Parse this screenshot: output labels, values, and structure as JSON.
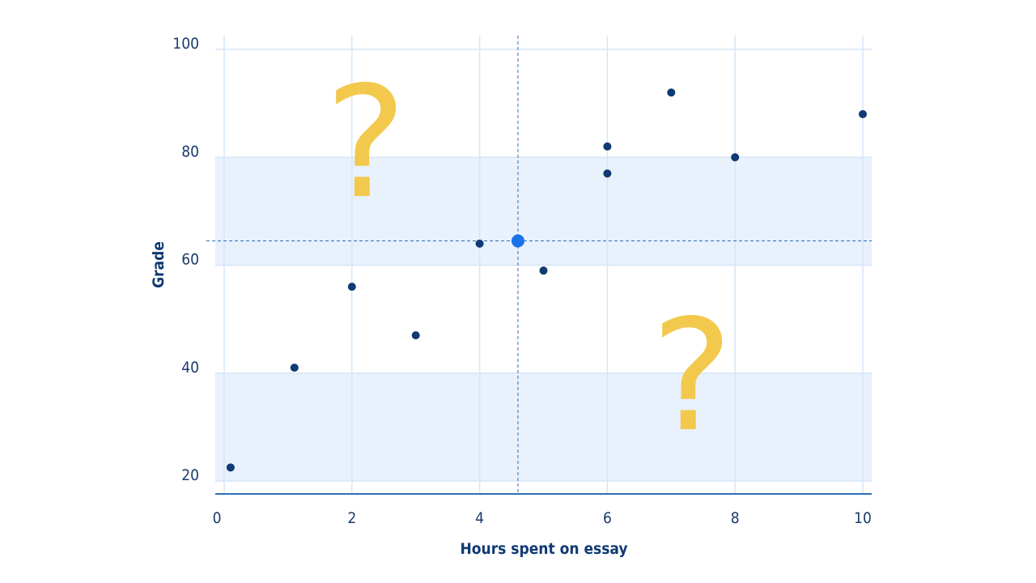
{
  "chart_data": {
    "type": "scatter",
    "xlabel": "Hours spent on essay",
    "ylabel": "Grade",
    "xlim": [
      0,
      10
    ],
    "ylim": [
      20,
      100
    ],
    "x_ticks": [
      "0",
      "2",
      "4",
      "6",
      "8",
      "10"
    ],
    "y_ticks": [
      "20",
      "40",
      "60",
      "80",
      "100"
    ],
    "grid": true,
    "bands": [
      {
        "y_from": 20,
        "y_to": 40
      },
      {
        "y_from": 60,
        "y_to": 80
      }
    ],
    "points": [
      {
        "x": 0.1,
        "y": 22.5
      },
      {
        "x": 1.1,
        "y": 41
      },
      {
        "x": 2.0,
        "y": 56
      },
      {
        "x": 3.0,
        "y": 47
      },
      {
        "x": 4.0,
        "y": 64
      },
      {
        "x": 5.0,
        "y": 59
      },
      {
        "x": 6.0,
        "y": 82
      },
      {
        "x": 6.0,
        "y": 77
      },
      {
        "x": 7.0,
        "y": 92
      },
      {
        "x": 8.0,
        "y": 80
      },
      {
        "x": 10.0,
        "y": 88
      }
    ],
    "highlight_point": {
      "x": 4.6,
      "y": 64.5
    },
    "annotations": [
      "?",
      "?"
    ],
    "colors": {
      "point": "#0f3a72",
      "highlight": "#1a73e8",
      "band": "#e8f1fc",
      "grid": "#d6e6f7",
      "axis": "#2f6db5",
      "question": "#f2c94c"
    }
  }
}
